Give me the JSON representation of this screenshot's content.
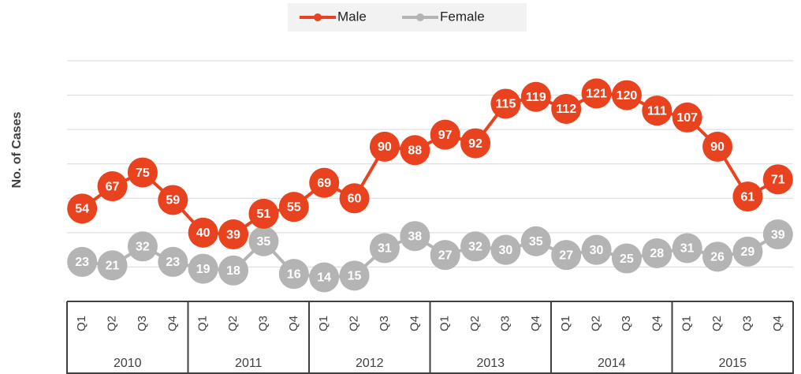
{
  "chart_data": {
    "type": "line",
    "y_label": "No. of Cases",
    "categories": [
      "Q1",
      "Q2",
      "Q3",
      "Q4",
      "Q1",
      "Q2",
      "Q3",
      "Q4",
      "Q1",
      "Q2",
      "Q3",
      "Q4",
      "Q1",
      "Q2",
      "Q3",
      "Q4",
      "Q1",
      "Q2",
      "Q3",
      "Q4",
      "Q1",
      "Q2",
      "Q3",
      "Q4"
    ],
    "groups": [
      "2010",
      "2011",
      "2012",
      "2013",
      "2014",
      "2015"
    ],
    "series": [
      {
        "name": "Male",
        "color": "#e8421e",
        "values": [
          54,
          67,
          75,
          59,
          40,
          39,
          51,
          55,
          69,
          60,
          90,
          88,
          97,
          92,
          115,
          119,
          112,
          121,
          120,
          111,
          107,
          90,
          61,
          71
        ]
      },
      {
        "name": "Female",
        "color": "#b4b4b4",
        "values": [
          23,
          21,
          32,
          23,
          19,
          18,
          35,
          16,
          14,
          15,
          31,
          38,
          27,
          32,
          30,
          35,
          27,
          30,
          25,
          28,
          31,
          26,
          29,
          39
        ]
      }
    ],
    "ylim": [
      0,
      140
    ],
    "yticks": [
      0,
      20,
      40,
      60,
      80,
      100,
      120,
      140
    ],
    "grid": true,
    "legend": "top"
  }
}
